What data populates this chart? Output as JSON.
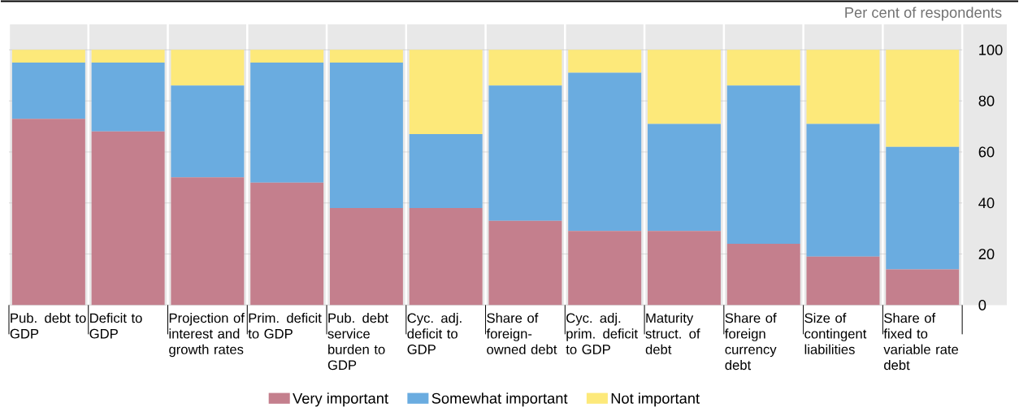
{
  "chart_data": {
    "type": "bar",
    "stacked": true,
    "annotations": [
      "Per cent of respondents"
    ],
    "categories": [
      "Pub. debt to GDP",
      "Deficit to GDP",
      "Projection of interest and growth rates",
      "Prim. deficit to GDP",
      "Pub. debt service burden to GDP",
      "Cyc. adj. deficit to GDP",
      "Share of foreign-owned debt",
      "Cyc. adj. prim. deficit to GDP",
      "Maturity struct. of debt",
      "Share of foreign currency debt",
      "Size of contingent liabilities",
      "Share of fixed to variable rate debt"
    ],
    "series": [
      {
        "name": "Very important",
        "color": "#c47f8d",
        "values": [
          73,
          68,
          50,
          48,
          38,
          38,
          33,
          29,
          29,
          24,
          19,
          14
        ]
      },
      {
        "name": "Somewhat important",
        "color": "#6aace0",
        "values": [
          22,
          27,
          36,
          47,
          57,
          29,
          53,
          62,
          42,
          62,
          52,
          48
        ]
      },
      {
        "name": "Not important",
        "color": "#fde97a",
        "values": [
          5,
          5,
          14,
          5,
          5,
          33,
          14,
          9,
          29,
          14,
          29,
          38
        ]
      }
    ],
    "ylim": [
      0,
      110
    ],
    "yticks": [
      0,
      20,
      40,
      60,
      80,
      100
    ],
    "grid": "y",
    "legend": "bottom"
  }
}
